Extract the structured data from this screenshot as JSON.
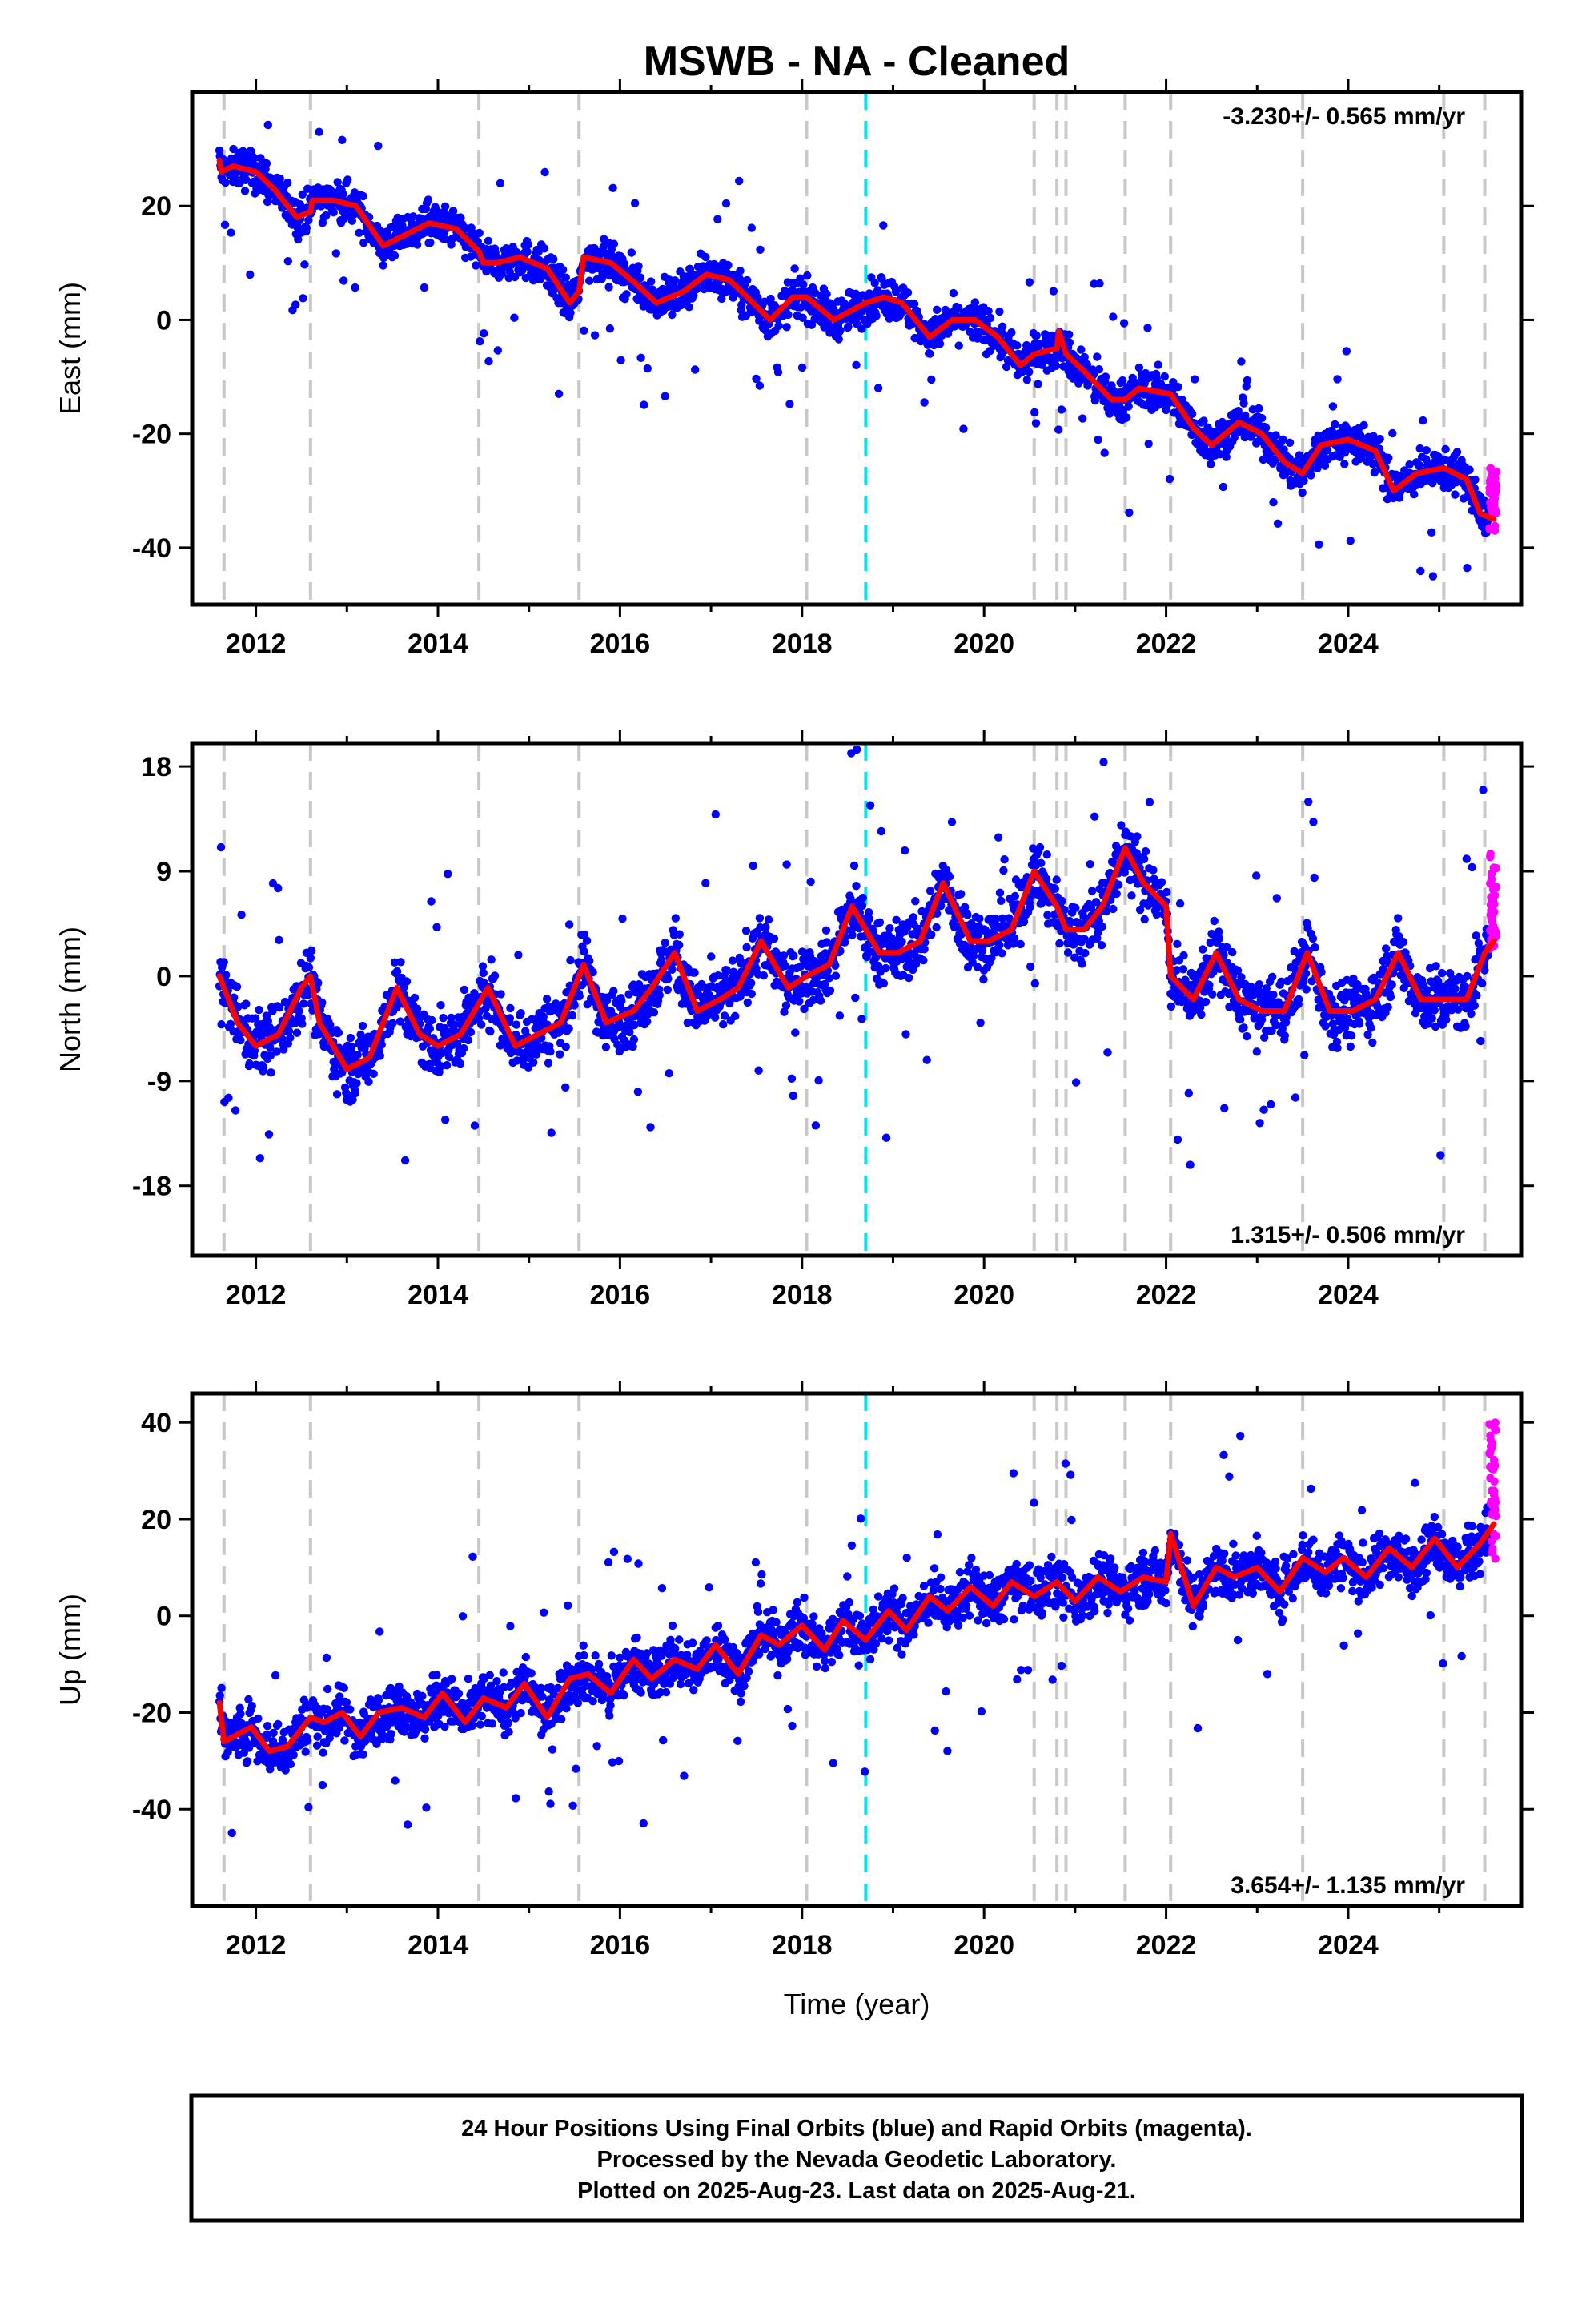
{
  "title": "MSWB  - NA - Cleaned",
  "xlabel": "Time (year)",
  "footer": {
    "line1": "24 Hour Positions Using Final Orbits (blue) and Rapid Orbits (magenta).",
    "line2": "Processed by the Nevada Geodetic Laboratory.",
    "line3": "Plotted on 2025-Aug-23. Last data on 2025-Aug-21."
  },
  "colors": {
    "final_points": "#0000ff",
    "rapid_points": "#ff00ff",
    "model_line": "#ff0000",
    "event_lines": "#c8c8c8",
    "highlight_event_line": "#00e5ee"
  },
  "chart_data": [
    {
      "type": "scatter",
      "panel": "east",
      "ylabel": "East (mm)",
      "rate_text": "-3.230+/- 0.565 mm/yr",
      "rate_placement": "top-right",
      "xlim": [
        2011.3,
        2025.9
      ],
      "ylim": [
        -50,
        40
      ],
      "xticks": [
        2012,
        2014,
        2016,
        2018,
        2020,
        2022,
        2024
      ],
      "yticks": [
        -40,
        -20,
        0,
        20
      ],
      "grid": false,
      "event_lines": [
        2011.65,
        2012.6,
        2014.45,
        2015.55,
        2018.05,
        2020.55,
        2020.8,
        2020.9,
        2021.55,
        2022.05,
        2023.5,
        2025.05,
        2025.5
      ],
      "highlight_event_line": 2018.7,
      "series": [
        {
          "name": "Final Orbits (blue)",
          "style": "points",
          "approx_trend": {
            "start_year": 2011.6,
            "start_value": 27,
            "rate_per_year": -3.23
          },
          "scatter_mm": 4.5
        },
        {
          "name": "Rapid Orbits (magenta)",
          "style": "points",
          "x_range": [
            2025.55,
            2025.63
          ],
          "y_range": [
            -37,
            -26
          ]
        },
        {
          "name": "Model",
          "style": "line",
          "x": [
            2011.6,
            2011.62,
            2011.75,
            2012.0,
            2012.2,
            2012.45,
            2012.6,
            2012.62,
            2012.85,
            2013.1,
            2013.4,
            2013.65,
            2013.9,
            2014.2,
            2014.45,
            2014.5,
            2014.65,
            2014.9,
            2015.2,
            2015.45,
            2015.55,
            2015.6,
            2015.9,
            2016.2,
            2016.4,
            2016.7,
            2016.95,
            2017.2,
            2017.4,
            2017.65,
            2017.9,
            2018.05,
            2018.35,
            2018.7,
            2018.9,
            2019.1,
            2019.4,
            2019.65,
            2019.9,
            2020.15,
            2020.4,
            2020.55,
            2020.8,
            2020.82,
            2020.9,
            2021.1,
            2021.4,
            2021.55,
            2021.7,
            2022.05,
            2022.3,
            2022.5,
            2022.8,
            2023.05,
            2023.3,
            2023.5,
            2023.7,
            2024.0,
            2024.3,
            2024.5,
            2024.75,
            2025.05,
            2025.3,
            2025.45,
            2025.6
          ],
          "y": [
            28,
            26,
            27,
            26,
            23,
            18,
            19,
            21,
            21,
            20,
            13,
            15,
            17,
            16,
            12,
            10,
            10,
            11,
            9,
            3,
            5,
            11,
            10,
            6,
            3,
            5,
            8,
            7,
            4,
            0,
            4,
            4,
            0,
            3,
            4,
            3,
            -3,
            0,
            0,
            -3,
            -8,
            -6,
            -5,
            -2,
            -6,
            -9,
            -14,
            -14,
            -12,
            -13,
            -19,
            -22,
            -18,
            -20,
            -25,
            -27,
            -22,
            -21,
            -23,
            -30,
            -27,
            -26,
            -28,
            -34,
            -35
          ]
        }
      ]
    },
    {
      "type": "scatter",
      "panel": "north",
      "ylabel": "North (mm)",
      "rate_text": "1.315+/- 0.506 mm/yr",
      "rate_placement": "bottom-right",
      "xlim": [
        2011.3,
        2025.9
      ],
      "ylim": [
        -24,
        20
      ],
      "xticks": [
        2012,
        2014,
        2016,
        2018,
        2020,
        2022,
        2024
      ],
      "yticks": [
        -18,
        -9,
        0,
        9,
        18
      ],
      "grid": false,
      "event_lines": [
        2011.65,
        2012.6,
        2014.45,
        2015.55,
        2018.05,
        2020.55,
        2020.8,
        2020.9,
        2021.55,
        2022.05,
        2023.5,
        2025.05,
        2025.5
      ],
      "highlight_event_line": 2018.7,
      "series": [
        {
          "name": "Final Orbits (blue)",
          "style": "points",
          "scatter_mm": 3.5
        },
        {
          "name": "Rapid Orbits (magenta)",
          "style": "points",
          "x_range": [
            2025.55,
            2025.63
          ],
          "y_range": [
            2,
            11
          ]
        },
        {
          "name": "Model",
          "style": "line",
          "x": [
            2011.6,
            2011.8,
            2012.0,
            2012.25,
            2012.5,
            2012.6,
            2012.7,
            2013.0,
            2013.25,
            2013.55,
            2013.8,
            2014.0,
            2014.25,
            2014.55,
            2014.85,
            2015.1,
            2015.35,
            2015.6,
            2015.85,
            2016.15,
            2016.35,
            2016.6,
            2016.85,
            2017.1,
            2017.3,
            2017.55,
            2017.85,
            2018.05,
            2018.3,
            2018.55,
            2018.85,
            2019.05,
            2019.3,
            2019.55,
            2019.85,
            2020.05,
            2020.3,
            2020.55,
            2020.8,
            2020.9,
            2021.1,
            2021.3,
            2021.55,
            2021.75,
            2022.0,
            2022.05,
            2022.3,
            2022.55,
            2022.8,
            2023.05,
            2023.3,
            2023.55,
            2023.8,
            2024.05,
            2024.3,
            2024.55,
            2024.8,
            2025.05,
            2025.3,
            2025.5,
            2025.6
          ],
          "y": [
            0,
            -4,
            -6,
            -5,
            -1,
            0,
            -4,
            -8,
            -7,
            -1,
            -5,
            -6,
            -5,
            -1,
            -6,
            -5,
            -4,
            1,
            -4,
            -3,
            -1,
            2,
            -3,
            -2,
            -1,
            3,
            -1,
            0,
            1,
            6,
            2,
            2,
            3,
            8,
            3,
            3,
            4,
            9,
            6,
            4,
            4,
            6,
            11,
            8,
            6,
            0,
            -2,
            2,
            -2,
            -3,
            -3,
            2,
            -3,
            -3,
            -2,
            2,
            -2,
            -2,
            -2,
            2,
            3
          ]
        }
      ]
    },
    {
      "type": "scatter",
      "panel": "up",
      "ylabel": "Up (mm)",
      "rate_text": "3.654+/- 1.135 mm/yr",
      "rate_placement": "bottom-right",
      "xlim": [
        2011.3,
        2025.9
      ],
      "ylim": [
        -60,
        46
      ],
      "xticks": [
        2012,
        2014,
        2016,
        2018,
        2020,
        2022,
        2024
      ],
      "yticks": [
        -40,
        -20,
        0,
        20,
        40
      ],
      "grid": false,
      "event_lines": [
        2011.65,
        2012.6,
        2014.45,
        2015.55,
        2018.05,
        2020.55,
        2020.8,
        2020.9,
        2021.55,
        2022.05,
        2023.5,
        2025.05,
        2025.5
      ],
      "highlight_event_line": 2018.7,
      "series": [
        {
          "name": "Final Orbits (blue)",
          "style": "points",
          "scatter_mm": 7
        },
        {
          "name": "Rapid Orbits (magenta)",
          "style": "points",
          "x_range": [
            2025.55,
            2025.63
          ],
          "y_range": [
            10,
            41
          ]
        },
        {
          "name": "Model",
          "style": "line",
          "x": [
            2011.6,
            2011.65,
            2011.75,
            2011.95,
            2012.15,
            2012.35,
            2012.6,
            2012.75,
            2012.95,
            2013.15,
            2013.35,
            2013.6,
            2013.85,
            2014.05,
            2014.3,
            2014.5,
            2014.75,
            2014.95,
            2015.2,
            2015.45,
            2015.65,
            2015.9,
            2016.15,
            2016.35,
            2016.6,
            2016.85,
            2017.05,
            2017.3,
            2017.55,
            2017.75,
            2018.0,
            2018.25,
            2018.45,
            2018.7,
            2018.95,
            2019.15,
            2019.4,
            2019.6,
            2019.85,
            2020.1,
            2020.3,
            2020.55,
            2020.8,
            2021.0,
            2021.25,
            2021.5,
            2021.75,
            2022.0,
            2022.05,
            2022.3,
            2022.55,
            2022.75,
            2023.0,
            2023.25,
            2023.5,
            2023.75,
            2023.95,
            2024.2,
            2024.45,
            2024.7,
            2024.95,
            2025.2,
            2025.45,
            2025.6
          ],
          "y": [
            -18,
            -26,
            -25,
            -23,
            -28,
            -27,
            -21,
            -22,
            -20,
            -25,
            -20,
            -19,
            -21,
            -16,
            -22,
            -17,
            -19,
            -14,
            -21,
            -13,
            -12,
            -16,
            -9,
            -13,
            -9,
            -11,
            -6,
            -12,
            -4,
            -6,
            -2,
            -7,
            -1,
            -5,
            1,
            -3,
            4,
            1,
            6,
            2,
            7,
            4,
            7,
            3,
            8,
            5,
            8,
            7,
            17,
            2,
            10,
            8,
            10,
            5,
            12,
            9,
            12,
            8,
            14,
            10,
            16,
            10,
            15,
            19
          ]
        }
      ]
    }
  ]
}
